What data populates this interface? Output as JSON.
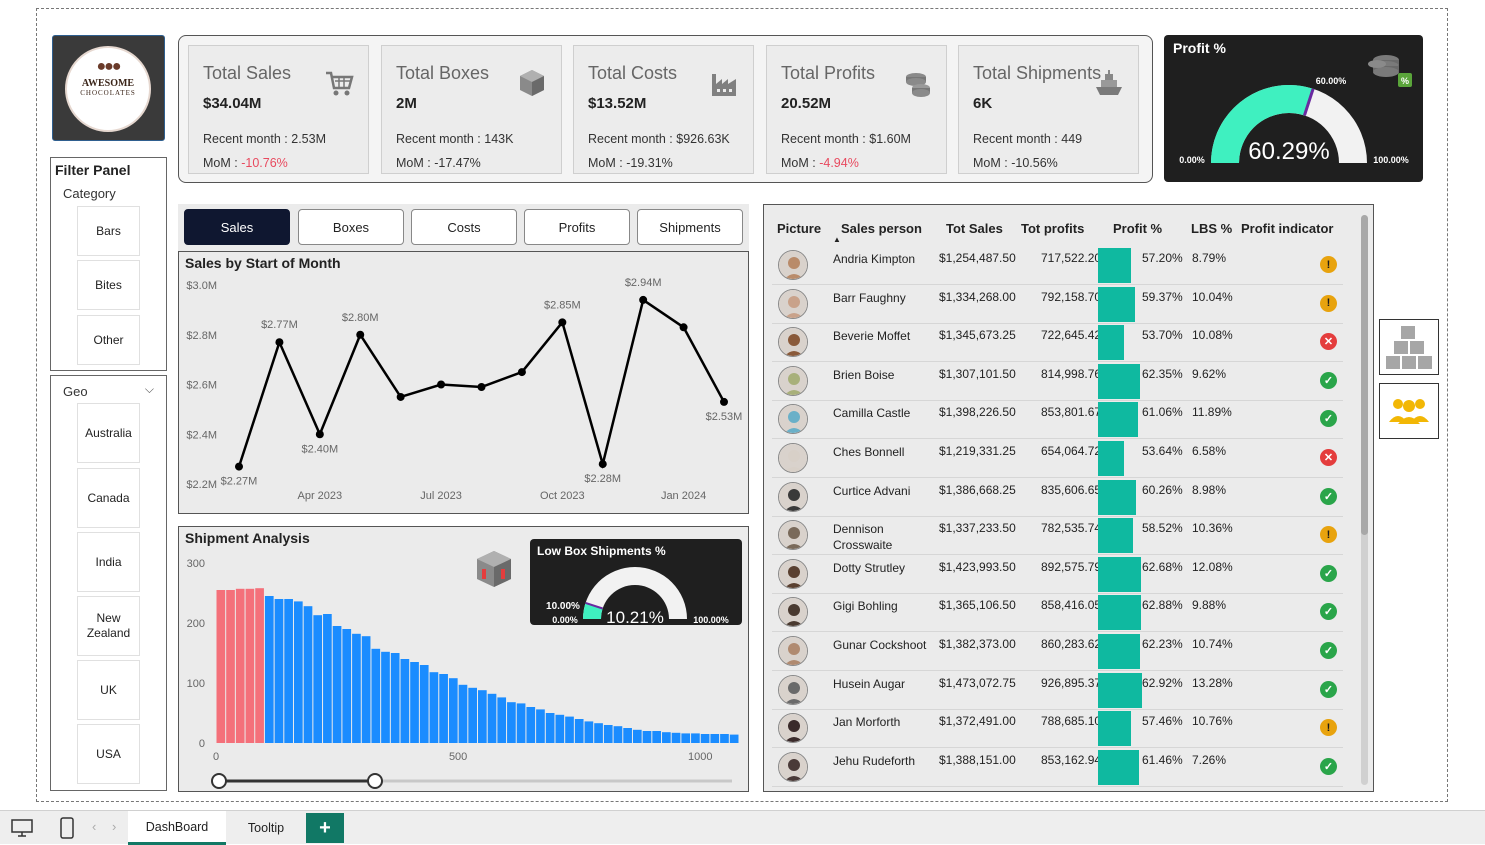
{
  "logo": {
    "title": "AWESOME",
    "subtitle": "CHOCOLATES"
  },
  "kpis": [
    {
      "title": "Total Sales",
      "value": "$34.04M",
      "recent": "Recent month : 2.53M",
      "mom_label": "MoM : ",
      "mom": "-10.76%",
      "mom_negative": true,
      "icon": "cart-icon"
    },
    {
      "title": "Total Boxes",
      "value": "2M",
      "recent": "Recent month : 143K",
      "mom_label": "MoM : ",
      "mom": "-17.47%",
      "mom_negative": false,
      "icon": "box-icon"
    },
    {
      "title": "Total Costs",
      "value": "$13.52M",
      "recent": "Recent month : $926.63K",
      "mom_label": "MoM : ",
      "mom": "-19.31%",
      "mom_negative": false,
      "icon": "factory-icon"
    },
    {
      "title": "Total Profits",
      "value": "20.52M",
      "recent": "Recent month : $1.60M",
      "mom_label": "MoM : ",
      "mom": "-4.94%",
      "mom_negative": true,
      "icon": "coins-icon"
    },
    {
      "title": "Total Shipments",
      "value": "6K",
      "recent": "Recent month : 449",
      "mom_label": "MoM : ",
      "mom": "-10.56%",
      "mom_negative": false,
      "icon": "ship-icon"
    }
  ],
  "profit_gauge": {
    "title": "Profit %",
    "value": 60.29,
    "value_label": "60.29%",
    "target_label": "60.00%",
    "target": 60.0,
    "min_label": "0.00%",
    "max_label": "100.00%",
    "badge": "%"
  },
  "filter_panel": {
    "title": "Filter Panel",
    "category_label": "Category",
    "categories": [
      "Bars",
      "Bites",
      "Other"
    ]
  },
  "geo": {
    "label": "Geo",
    "chevron": "⌵",
    "items": [
      "Australia",
      "Canada",
      "India",
      "New Zealand",
      "UK",
      "USA"
    ]
  },
  "tabs": [
    {
      "label": "Sales",
      "active": true
    },
    {
      "label": "Boxes",
      "active": false
    },
    {
      "label": "Costs",
      "active": false
    },
    {
      "label": "Profits",
      "active": false
    },
    {
      "label": "Shipments",
      "active": false
    }
  ],
  "chart_data": [
    {
      "type": "line",
      "title": "Sales by Start of Month",
      "x": [
        "2023-02",
        "2023-03",
        "2023-04",
        "2023-05",
        "2023-06",
        "2023-07",
        "2023-08",
        "2023-09",
        "2023-10",
        "2023-11",
        "2023-12",
        "2024-01",
        "2024-02"
      ],
      "values": [
        2.27,
        2.77,
        2.4,
        2.8,
        2.55,
        2.6,
        2.59,
        2.65,
        2.85,
        2.28,
        2.94,
        2.83,
        2.53
      ],
      "data_labels": [
        "$2.27M",
        "$2.77M",
        "$2.40M",
        "$2.80M",
        "",
        "",
        "",
        "",
        "$2.85M",
        "$2.28M",
        "$2.94M",
        "",
        "$2.53M"
      ],
      "yticks": [
        "$2.2M",
        "$2.4M",
        "$2.6M",
        "$2.8M",
        "$3.0M"
      ],
      "ytick_values": [
        2.2,
        2.4,
        2.6,
        2.8,
        3.0
      ],
      "xticks": [
        "Apr 2023",
        "Jul 2023",
        "Oct 2023",
        "Jan 2024"
      ],
      "xtick_index": [
        2,
        5,
        8,
        11
      ],
      "ylim": [
        2.2,
        3.0
      ],
      "color": "#000000"
    },
    {
      "type": "bar",
      "title": "Shipment Analysis",
      "xlim": [
        0,
        1080
      ],
      "ylim": [
        0,
        300
      ],
      "yticks": [
        0,
        100,
        200,
        300
      ],
      "xticks": [
        0,
        500,
        1000
      ],
      "bin_width": 20,
      "values": [
        255,
        255,
        257,
        257,
        258,
        245,
        240,
        240,
        236,
        228,
        213,
        215,
        195,
        190,
        182,
        178,
        157,
        152,
        150,
        140,
        135,
        130,
        118,
        115,
        108,
        97,
        92,
        88,
        82,
        76,
        68,
        66,
        60,
        56,
        50,
        47,
        44,
        40,
        36,
        33,
        30,
        28,
        25,
        22,
        20,
        20,
        18,
        17,
        16,
        16,
        15,
        15,
        15,
        14
      ],
      "highlight_count": 5,
      "highlight_color": "#f4707a",
      "color": "#1a8cff"
    }
  ],
  "ship_panel": {
    "title": "Shipment Analysis",
    "icon": "box-down-icon"
  },
  "low_box": {
    "title": "Low Box Shipments %",
    "value": 10.21,
    "value_label": "10.21%",
    "target_label": "10.00%",
    "min_label": "0.00%",
    "max_label": "100.00%"
  },
  "table": {
    "headers": [
      "Picture",
      "Sales person",
      "Tot Sales",
      "Tot profits",
      "Profit %",
      "LBS %",
      "Profit indicator"
    ],
    "rows": [
      {
        "name": "Andria Kimpton",
        "sales": "$1,254,487.50",
        "profits": "717,522.20",
        "pct": "57.20%",
        "pct_value": 57.2,
        "lbs": "8.79%",
        "ind": "warn",
        "color": "#b98b6a"
      },
      {
        "name": "Barr Faughny",
        "sales": "$1,334,268.00",
        "profits": "792,158.70",
        "pct": "59.37%",
        "pct_value": 59.37,
        "lbs": "10.04%",
        "ind": "warn",
        "color": "#c9a28a"
      },
      {
        "name": "Beverie Moffet",
        "sales": "$1,345,673.25",
        "profits": "722,645.42",
        "pct": "53.70%",
        "pct_value": 53.7,
        "lbs": "10.08%",
        "ind": "bad",
        "color": "#8a5a3a"
      },
      {
        "name": "Brien Boise",
        "sales": "$1,307,101.50",
        "profits": "814,998.76",
        "pct": "62.35%",
        "pct_value": 62.35,
        "lbs": "9.62%",
        "ind": "good",
        "color": "#a8b07a"
      },
      {
        "name": "Camilla Castle",
        "sales": "$1,398,226.50",
        "profits": "853,801.67",
        "pct": "61.06%",
        "pct_value": 61.06,
        "lbs": "11.89%",
        "ind": "good",
        "color": "#6ab0c8"
      },
      {
        "name": "Ches Bonnell",
        "sales": "$1,219,331.25",
        "profits": "654,064.72",
        "pct": "53.64%",
        "pct_value": 53.64,
        "lbs": "6.58%",
        "ind": "bad",
        "color": "#d8d0c8"
      },
      {
        "name": "Curtice Advani",
        "sales": "$1,386,668.25",
        "profits": "835,606.65",
        "pct": "60.26%",
        "pct_value": 60.26,
        "lbs": "8.98%",
        "ind": "good",
        "color": "#3a3a3a"
      },
      {
        "name": "Dennison Crosswaite",
        "sales": "$1,337,233.50",
        "profits": "782,535.74",
        "pct": "58.52%",
        "pct_value": 58.52,
        "lbs": "10.36%",
        "ind": "warn",
        "color": "#7a6a5a"
      },
      {
        "name": "Dotty Strutley",
        "sales": "$1,423,993.50",
        "profits": "892,575.79",
        "pct": "62.68%",
        "pct_value": 62.68,
        "lbs": "12.08%",
        "ind": "good",
        "color": "#5a4030"
      },
      {
        "name": "Gigi Bohling",
        "sales": "$1,365,106.50",
        "profits": "858,416.05",
        "pct": "62.88%",
        "pct_value": 62.88,
        "lbs": "9.88%",
        "ind": "good",
        "color": "#4a3a30"
      },
      {
        "name": "Gunar Cockshoot",
        "sales": "$1,382,373.00",
        "profits": "860,283.62",
        "pct": "62.23%",
        "pct_value": 62.23,
        "lbs": "10.74%",
        "ind": "good",
        "color": "#b08a70"
      },
      {
        "name": "Husein Augar",
        "sales": "$1,473,072.75",
        "profits": "926,895.37",
        "pct": "62.92%",
        "pct_value": 62.92,
        "lbs": "13.28%",
        "ind": "good",
        "color": "#6a6a6a"
      },
      {
        "name": "Jan Morforth",
        "sales": "$1,372,491.00",
        "profits": "788,685.10",
        "pct": "57.46%",
        "pct_value": 57.46,
        "lbs": "10.76%",
        "ind": "warn",
        "color": "#3a2a2a"
      },
      {
        "name": "Jehu Rudeforth",
        "sales": "$1,388,151.00",
        "profits": "853,162.94",
        "pct": "61.46%",
        "pct_value": 61.46,
        "lbs": "7.26%",
        "ind": "good",
        "color": "#4a3a38"
      }
    ],
    "indicator_glyphs": {
      "warn": "!",
      "bad": "✕",
      "good": "✓"
    }
  },
  "side_buttons": [
    {
      "icon": "boxes-stack-icon"
    },
    {
      "icon": "people-group-icon"
    }
  ],
  "bottom": {
    "pages": [
      "DashBoard",
      "Tooltip"
    ],
    "active_page": "DashBoard",
    "add": "+",
    "nav_prev": "‹",
    "nav_next": "›"
  },
  "colors": {
    "accent": "#117865",
    "gauge": "#3ff0c0",
    "bar": "#1a8cff",
    "profit_bar": "#0fb9a0",
    "negative": "#e84a5f",
    "dark_tab": "#0f1730"
  }
}
